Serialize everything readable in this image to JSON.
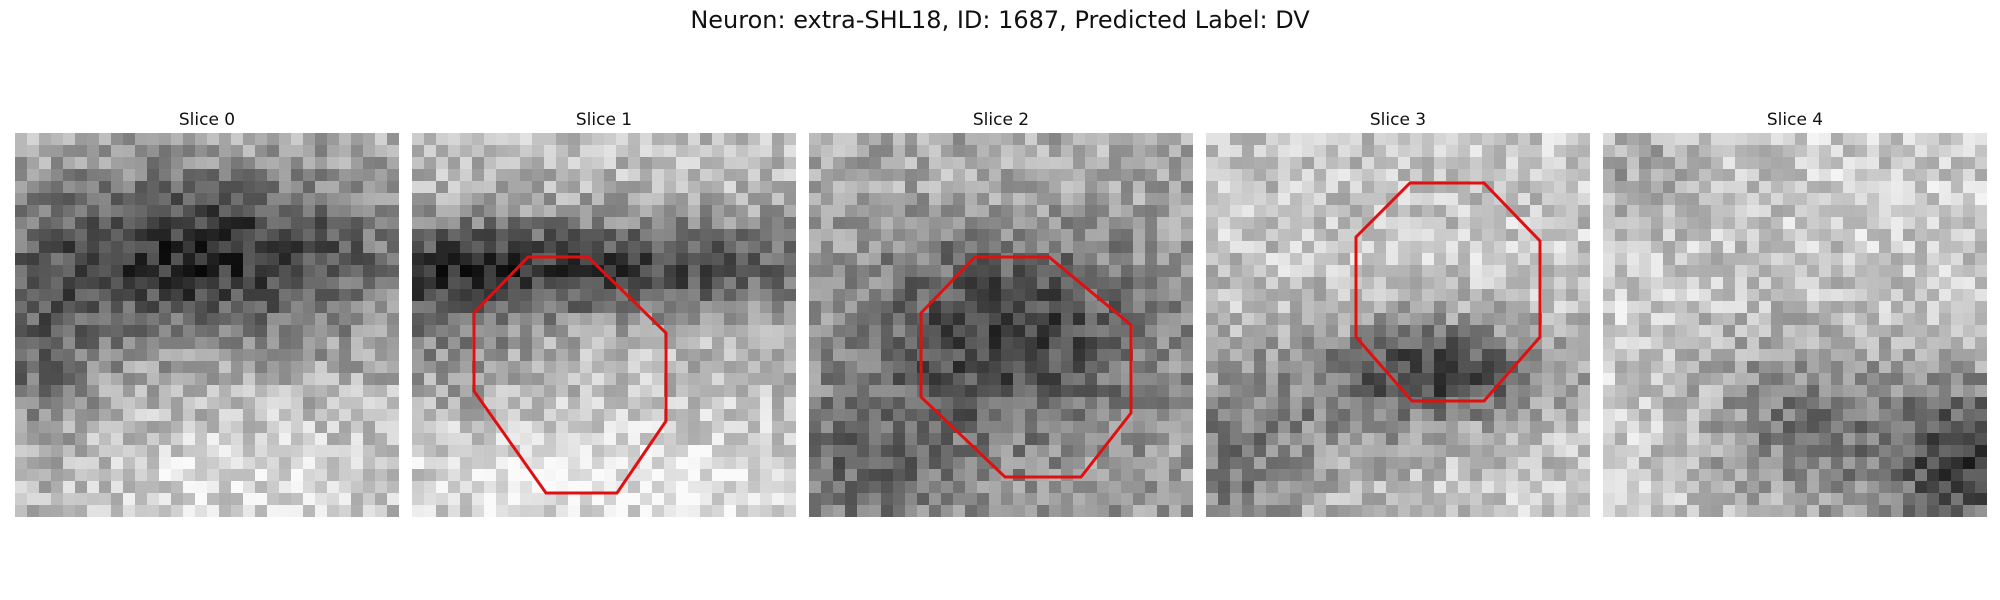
{
  "title": "Neuron: extra-SHL18, ID: 1687, Predicted Label: DV",
  "outline_color": "#e01010",
  "grid_size": 32,
  "slices": [
    {
      "label": "Slice 0",
      "has_outline": false,
      "description": "noisy grayscale patch with a dark band across the upper middle"
    },
    {
      "label": "Slice 1",
      "has_outline": true,
      "description": "dark horizontal band with lighter region below; red octagon outline"
    },
    {
      "label": "Slice 2",
      "has_outline": true,
      "description": "mid-gray noisy patch with dark center; red octagon outline"
    },
    {
      "label": "Slice 3",
      "has_outline": true,
      "description": "light patch with dark lower-center region; red octagon outline"
    },
    {
      "label": "Slice 4",
      "has_outline": false,
      "description": "light noisy patch with darker lower-right corner"
    }
  ]
}
